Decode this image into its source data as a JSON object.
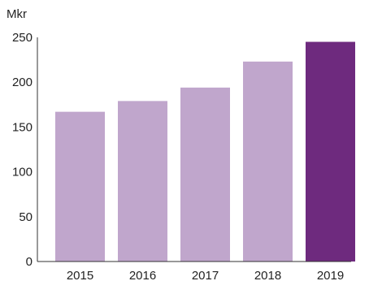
{
  "chart_data": {
    "type": "bar",
    "unit_label": "Mkr",
    "categories": [
      "2015",
      "2016",
      "2017",
      "2018",
      "2019"
    ],
    "values": [
      167,
      179,
      194,
      223,
      245
    ],
    "ylim": [
      0,
      250
    ],
    "yticks": [
      0,
      50,
      100,
      150,
      200,
      250
    ],
    "grid": false,
    "colors": {
      "bar": "#c0a6cc",
      "highlight": "#6e2a7e",
      "axis": "#333333",
      "text": "#222222"
    },
    "highlight_index": 4
  }
}
